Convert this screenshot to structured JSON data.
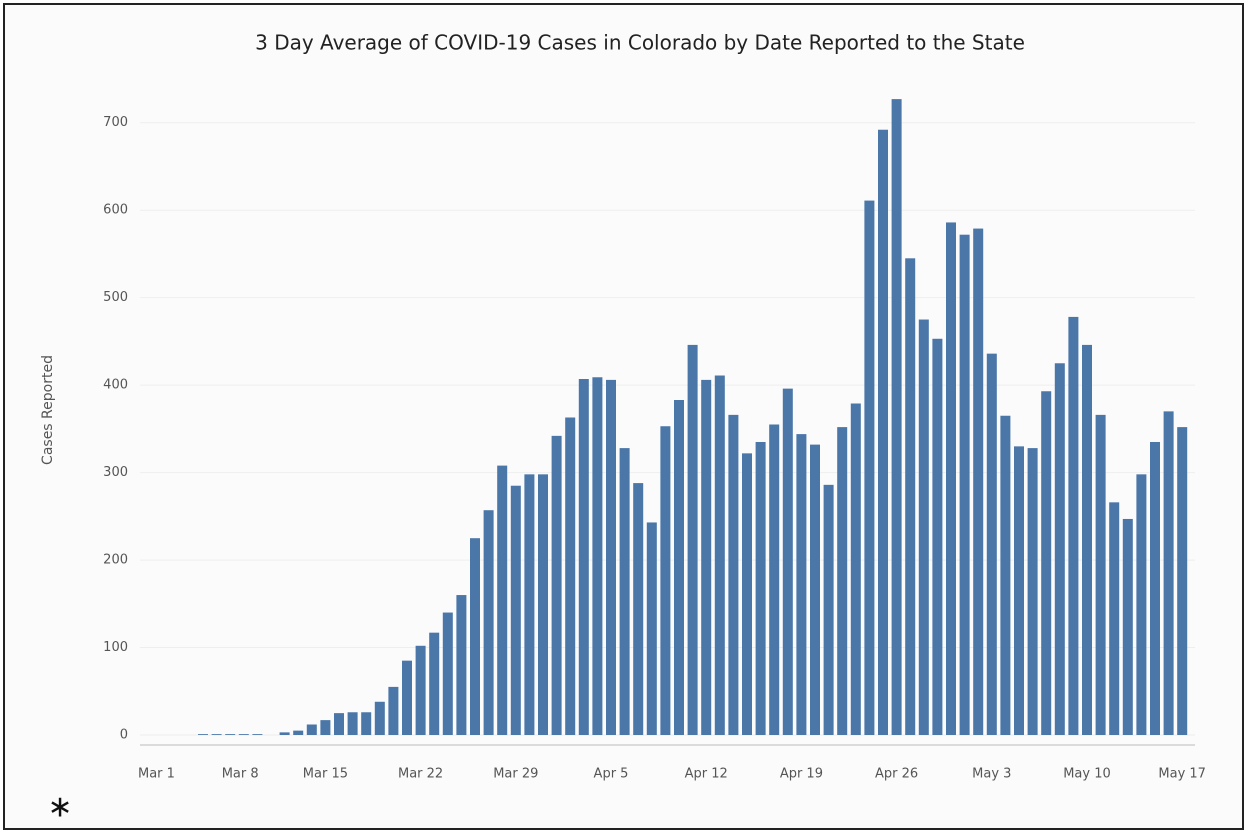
{
  "chart_data": {
    "type": "bar",
    "title": "3 Day Average of COVID-19 Cases in Colorado by Date Reported to the State",
    "y_label": "Cases Reported",
    "footnote": "∗",
    "color": "#4a76a8",
    "grid": true,
    "categories": [
      "Mar 1",
      null,
      null,
      null,
      null,
      null,
      null,
      "Mar 8",
      null,
      null,
      null,
      null,
      null,
      null,
      "Mar 15",
      null,
      null,
      null,
      null,
      null,
      null,
      "Mar 22",
      null,
      null,
      null,
      null,
      null,
      null,
      "Mar 29",
      null,
      null,
      null,
      null,
      null,
      null,
      "Apr 5",
      null,
      null,
      null,
      null,
      null,
      null,
      "Apr 12",
      null,
      null,
      null,
      null,
      null,
      null,
      "Apr 19",
      null,
      null,
      null,
      null,
      null,
      null,
      "Apr 26",
      null,
      null,
      null,
      null,
      null,
      null,
      "May 3",
      null,
      null,
      null,
      null,
      null,
      null,
      "May 10",
      null,
      null,
      null,
      null,
      null,
      null,
      "May 17"
    ],
    "values": [
      0,
      0,
      0,
      0,
      0,
      1,
      1,
      1,
      1,
      1,
      0,
      3,
      5,
      12,
      17,
      25,
      26,
      26,
      38,
      55,
      85,
      102,
      117,
      140,
      160,
      225,
      257,
      308,
      285,
      298,
      298,
      342,
      363,
      407,
      409,
      406,
      328,
      288,
      243,
      353,
      383,
      446,
      406,
      411,
      366,
      322,
      335,
      355,
      396,
      344,
      332,
      286,
      352,
      379,
      611,
      692,
      727,
      545,
      475,
      453,
      586,
      572,
      579,
      436,
      365,
      330,
      328,
      393,
      425,
      478,
      446,
      366,
      266,
      247,
      298,
      335,
      370,
      352
    ],
    "ylim": [
      0,
      750
    ],
    "yticks": [
      0,
      100,
      200,
      300,
      400,
      500,
      600,
      700
    ]
  }
}
